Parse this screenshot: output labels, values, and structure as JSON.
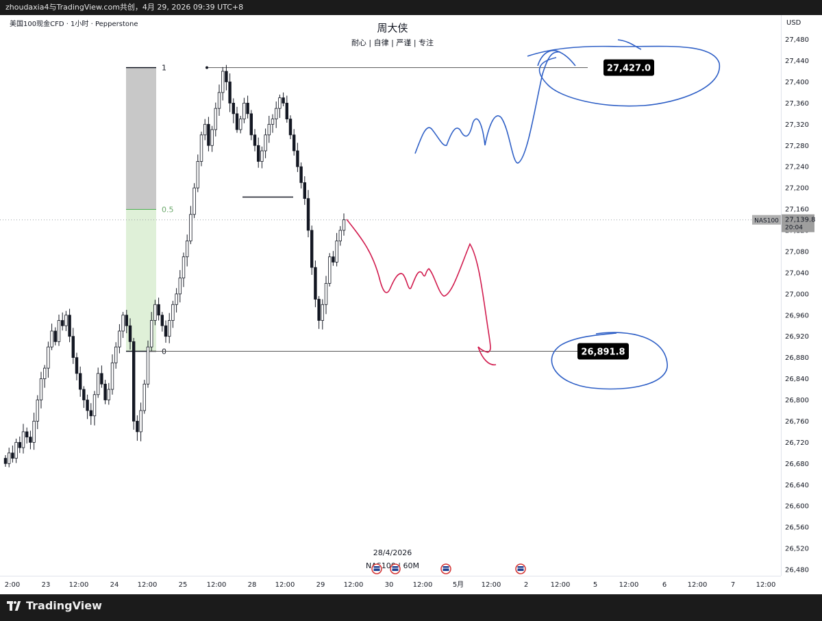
{
  "window": {
    "share_line": "zhoudaxia4与TradingView.com共创，4月 29, 2026 09:39 UTC+8"
  },
  "legend": {
    "symbol": "美国100现金CFD · 1小时 · Pepperstone"
  },
  "header": {
    "title": "周大侠",
    "subtitle": "耐心 | 自律 | 严谨 | 专注"
  },
  "price_axis": {
    "currency": "USD"
  },
  "crosshair": {
    "date_label": "28/4/2026",
    "symbol_label": "NAS100 | 60M"
  },
  "footer": {
    "brand": "TradingView"
  },
  "chart_data": {
    "type": "candlestick",
    "y_ticks": [
      26480,
      26520,
      26560,
      26600,
      26640,
      26680,
      26720,
      26760,
      26800,
      26840,
      26880,
      26920,
      26960,
      27000,
      27040,
      27080,
      27120,
      27160,
      27200,
      27240,
      27280,
      27320,
      27360,
      27400,
      27440,
      27480
    ],
    "ylim": [
      26470,
      27500
    ],
    "x_ticks": [
      "2:00",
      "23",
      "12:00",
      "24",
      "12:00",
      "25",
      "12:00",
      "28",
      "12:00",
      "29",
      "12:00",
      "30",
      "12:00",
      "5月",
      "12:00",
      "2",
      "12:00",
      "5",
      "12:00",
      "6",
      "12:00",
      "7",
      "12:00"
    ],
    "current_price": {
      "symbol": "NAS100",
      "value": "27,139.8",
      "countdown": "20:04",
      "price": 27139.8
    },
    "fib_levels": [
      {
        "label": "1",
        "price": 27427.0
      },
      {
        "label": "0.5",
        "price": 27159.4
      },
      {
        "label": "0",
        "price": 26891.8
      }
    ],
    "target_labels": [
      {
        "text": "27,427.0",
        "price": 27427.0
      },
      {
        "text": "26,891.8",
        "price": 26891.8
      }
    ],
    "closes": [
      26680,
      26700,
      26690,
      26720,
      26710,
      26740,
      26730,
      26720,
      26760,
      26800,
      26840,
      26860,
      26900,
      26930,
      26910,
      26950,
      26940,
      26960,
      26920,
      26880,
      26850,
      26820,
      26800,
      26780,
      26770,
      26810,
      26850,
      26830,
      26800,
      26820,
      26870,
      26900,
      26930,
      26960,
      26940,
      26910,
      26760,
      26740,
      26780,
      26830,
      26900,
      26950,
      26980,
      26960,
      26940,
      26920,
      26950,
      26980,
      27000,
      27030,
      27070,
      27100,
      27150,
      27200,
      27250,
      27300,
      27320,
      27280,
      27310,
      27350,
      27380,
      27420,
      27400,
      27360,
      27340,
      27310,
      27330,
      27360,
      27340,
      27300,
      27280,
      27250,
      27270,
      27300,
      27320,
      27330,
      27350,
      27370,
      27360,
      27330,
      27300,
      27270,
      27240,
      27210,
      27180,
      27120,
      27050,
      26990,
      26950,
      26980,
      27020,
      27070,
      27060,
      27100,
      27120,
      27139.8
    ]
  }
}
